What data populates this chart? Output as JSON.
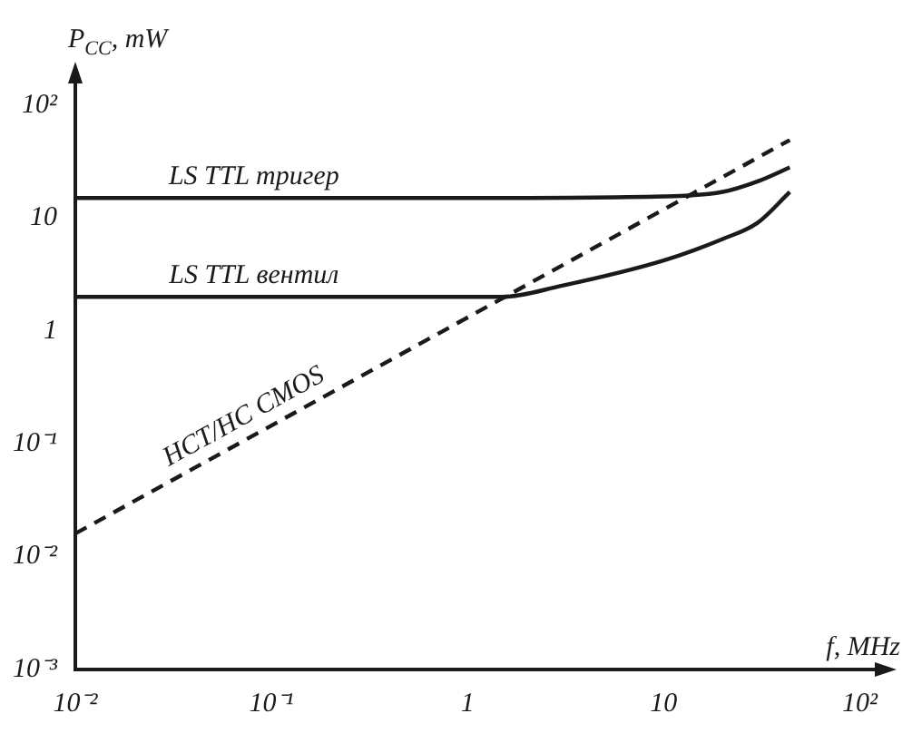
{
  "chart_data": {
    "type": "line",
    "xlabel": "f, MHz",
    "ylabel": "P$_{CC}$, mW",
    "log": "xy",
    "grid": false,
    "legend": false,
    "marker": "none",
    "xlim": [
      0.01,
      130
    ],
    "ylim": [
      0.001,
      180
    ],
    "xticks": [
      {
        "value": 0.01,
        "label": "10⁻²"
      },
      {
        "value": 0.1,
        "label": "10⁻¹"
      },
      1,
      10,
      {
        "value": 100,
        "label": "10²"
      }
    ],
    "yticks": [
      {
        "value": 0.001,
        "label": "10⁻³"
      },
      {
        "value": 0.01,
        "label": "10⁻²"
      },
      {
        "value": 0.1,
        "label": "10⁻¹"
      },
      1,
      10,
      {
        "value": 100,
        "label": "10²"
      }
    ],
    "series": [
      {
        "name": "LS TTL тригер",
        "color": "#1a1a1a",
        "line_style": "solid",
        "x": [
          0.01,
          1,
          10,
          20,
          30,
          44
        ],
        "values": [
          15,
          15,
          15.5,
          17,
          21,
          28
        ]
      },
      {
        "name": "LS TTL вентил",
        "color": "#1a1a1a",
        "line_style": "solid",
        "x": [
          0.01,
          1,
          1.5,
          3,
          10,
          20,
          30,
          44
        ],
        "values": [
          2,
          2,
          2,
          2.5,
          4.2,
          6.5,
          9,
          17
        ]
      },
      {
        "name": "HCT/HC CMOS",
        "color": "#1a1a1a",
        "line_style": "dashed",
        "x": [
          0.01,
          44
        ],
        "values": [
          0.016,
          49
        ]
      }
    ]
  }
}
